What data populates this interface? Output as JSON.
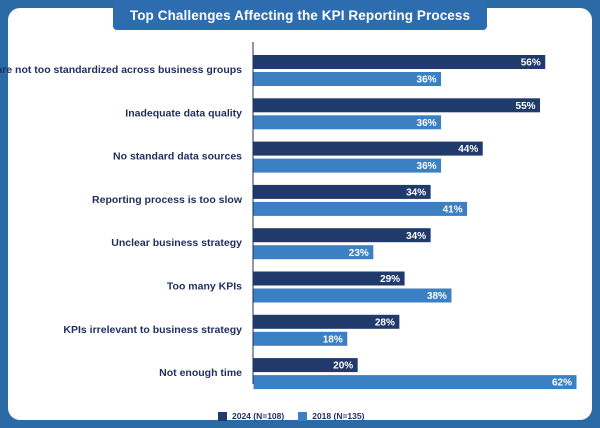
{
  "chart_data": {
    "type": "bar",
    "orientation": "horizontal",
    "title": "Top Challenges Affecting the KPI Reporting Process",
    "categories": [
      "Measures are not too standardized across business groups",
      "Inadequate data quality",
      "No standard data sources",
      "Reporting process is too slow",
      "Unclear business strategy",
      "Too many KPIs",
      "KPIs irrelevant to business strategy",
      "Not enough time"
    ],
    "series": [
      {
        "name": "2024 (N=108)",
        "color": "#1f3a6b",
        "values": [
          56,
          55,
          44,
          34,
          34,
          29,
          28,
          20
        ]
      },
      {
        "name": "2018 (N=135)",
        "color": "#3a80c2",
        "values": [
          36,
          36,
          36,
          41,
          23,
          38,
          18,
          62
        ]
      }
    ],
    "value_suffix": "%",
    "xlim": [
      0,
      62
    ],
    "grid": false,
    "legend_position": "bottom"
  },
  "colors": {
    "background": "#2c6aa6",
    "title_banner": "#2d6cae",
    "text": "#1e2f5e"
  }
}
